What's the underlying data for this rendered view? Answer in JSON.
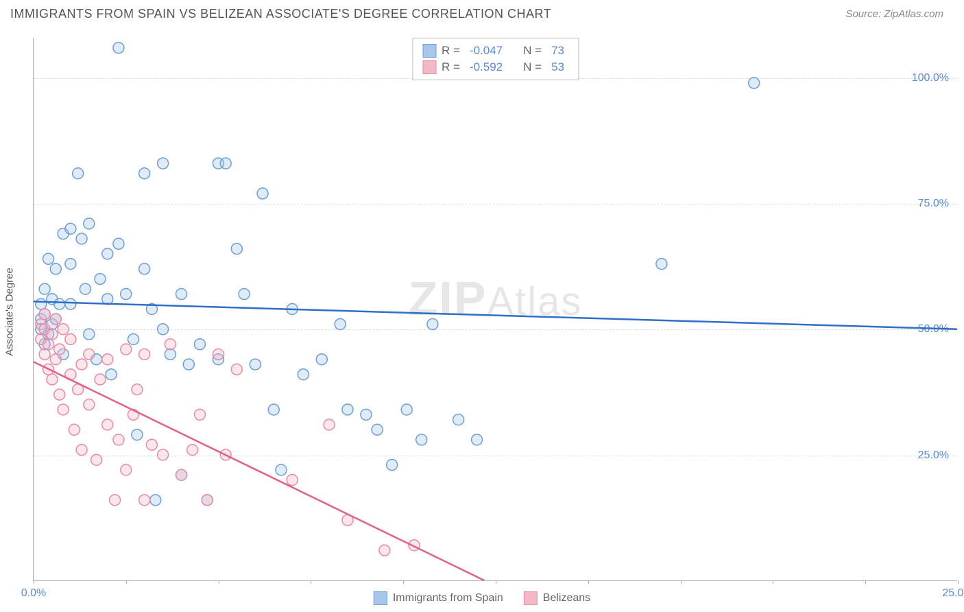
{
  "title": "IMMIGRANTS FROM SPAIN VS BELIZEAN ASSOCIATE'S DEGREE CORRELATION CHART",
  "source_label": "Source: ZipAtlas.com",
  "y_axis_label": "Associate's Degree",
  "watermark_left": "ZIP",
  "watermark_right": "Atlas",
  "chart": {
    "type": "scatter",
    "xlim": [
      0,
      25
    ],
    "ylim": [
      0,
      108
    ],
    "x_ticks": [
      0,
      2.5,
      5,
      7.5,
      10,
      12.5,
      15,
      17.5,
      20,
      22.5,
      25
    ],
    "x_tick_labels": {
      "0": "0.0%",
      "25": "25.0%"
    },
    "y_gridlines": [
      25,
      50,
      75,
      100
    ],
    "y_tick_labels": {
      "25": "25.0%",
      "50": "50.0%",
      "75": "75.0%",
      "100": "100.0%"
    },
    "grid_color": "#dddddd",
    "axis_color": "#aaaaaa",
    "tick_label_color": "#5b8bd4",
    "marker_radius": 8,
    "series": [
      {
        "key": "spain",
        "label": "Immigrants from Spain",
        "color_fill": "#a7c7ea",
        "color_stroke": "#6b9fd8",
        "trend_color": "#2e6fc9",
        "R": "-0.047",
        "N": "73",
        "trend": {
          "x1": 0,
          "y1": 55.5,
          "x2": 25,
          "y2": 50.0
        },
        "points": [
          [
            0.2,
            52
          ],
          [
            0.2,
            55
          ],
          [
            0.2,
            50
          ],
          [
            0.3,
            47
          ],
          [
            0.3,
            58
          ],
          [
            0.3,
            53
          ],
          [
            0.4,
            49
          ],
          [
            0.4,
            64
          ],
          [
            0.5,
            51
          ],
          [
            0.5,
            56
          ],
          [
            0.6,
            52
          ],
          [
            0.6,
            62
          ],
          [
            0.7,
            55
          ],
          [
            0.8,
            45
          ],
          [
            0.8,
            69
          ],
          [
            1.0,
            63
          ],
          [
            1.0,
            70
          ],
          [
            1.0,
            55
          ],
          [
            1.2,
            81
          ],
          [
            1.3,
            68
          ],
          [
            1.4,
            58
          ],
          [
            1.5,
            71
          ],
          [
            1.5,
            49
          ],
          [
            1.7,
            44
          ],
          [
            1.8,
            60
          ],
          [
            2.0,
            65
          ],
          [
            2.0,
            56
          ],
          [
            2.1,
            41
          ],
          [
            2.3,
            106
          ],
          [
            2.3,
            67
          ],
          [
            2.5,
            57
          ],
          [
            2.7,
            48
          ],
          [
            2.8,
            29
          ],
          [
            3.0,
            81
          ],
          [
            3.0,
            62
          ],
          [
            3.2,
            54
          ],
          [
            3.3,
            16
          ],
          [
            3.5,
            50
          ],
          [
            3.5,
            83
          ],
          [
            3.7,
            45
          ],
          [
            4.0,
            21
          ],
          [
            4.0,
            57
          ],
          [
            4.2,
            43
          ],
          [
            4.5,
            47
          ],
          [
            4.7,
            16
          ],
          [
            5.0,
            83
          ],
          [
            5.0,
            44
          ],
          [
            5.2,
            83
          ],
          [
            5.5,
            66
          ],
          [
            5.7,
            57
          ],
          [
            6.0,
            43
          ],
          [
            6.2,
            77
          ],
          [
            6.5,
            34
          ],
          [
            6.7,
            22
          ],
          [
            7.0,
            54
          ],
          [
            7.3,
            41
          ],
          [
            7.8,
            44
          ],
          [
            8.3,
            51
          ],
          [
            8.5,
            34
          ],
          [
            9.0,
            33
          ],
          [
            9.3,
            30
          ],
          [
            9.7,
            23
          ],
          [
            10.1,
            34
          ],
          [
            10.5,
            28
          ],
          [
            10.8,
            51
          ],
          [
            11.5,
            32
          ],
          [
            12.0,
            28
          ],
          [
            17.0,
            63
          ],
          [
            19.5,
            99
          ]
        ]
      },
      {
        "key": "belize",
        "label": "Belizeans",
        "color_fill": "#f2b8c6",
        "color_stroke": "#e88ba3",
        "trend_color": "#e26184",
        "R": "-0.592",
        "N": "53",
        "trend": {
          "x1": 0,
          "y1": 43.5,
          "x2": 12.2,
          "y2": 0
        },
        "points": [
          [
            0.2,
            51
          ],
          [
            0.2,
            48
          ],
          [
            0.3,
            45
          ],
          [
            0.3,
            50
          ],
          [
            0.3,
            53
          ],
          [
            0.4,
            42
          ],
          [
            0.4,
            47
          ],
          [
            0.5,
            49
          ],
          [
            0.5,
            40
          ],
          [
            0.6,
            44
          ],
          [
            0.6,
            52
          ],
          [
            0.7,
            46
          ],
          [
            0.7,
            37
          ],
          [
            0.8,
            50
          ],
          [
            0.8,
            34
          ],
          [
            1.0,
            41
          ],
          [
            1.0,
            48
          ],
          [
            1.1,
            30
          ],
          [
            1.2,
            38
          ],
          [
            1.3,
            43
          ],
          [
            1.3,
            26
          ],
          [
            1.5,
            45
          ],
          [
            1.5,
            35
          ],
          [
            1.7,
            24
          ],
          [
            1.8,
            40
          ],
          [
            2.0,
            31
          ],
          [
            2.0,
            44
          ],
          [
            2.2,
            16
          ],
          [
            2.3,
            28
          ],
          [
            2.5,
            46
          ],
          [
            2.5,
            22
          ],
          [
            2.7,
            33
          ],
          [
            2.8,
            38
          ],
          [
            3.0,
            16
          ],
          [
            3.0,
            45
          ],
          [
            3.2,
            27
          ],
          [
            3.5,
            25
          ],
          [
            3.7,
            47
          ],
          [
            4.0,
            21
          ],
          [
            4.3,
            26
          ],
          [
            4.5,
            33
          ],
          [
            4.7,
            16
          ],
          [
            5.0,
            45
          ],
          [
            5.2,
            25
          ],
          [
            5.5,
            42
          ],
          [
            7.0,
            20
          ],
          [
            8.0,
            31
          ],
          [
            8.5,
            12
          ],
          [
            9.5,
            6
          ],
          [
            10.3,
            7
          ]
        ]
      }
    ]
  },
  "legend_top": {
    "R_label": "R =",
    "N_label": "N ="
  }
}
